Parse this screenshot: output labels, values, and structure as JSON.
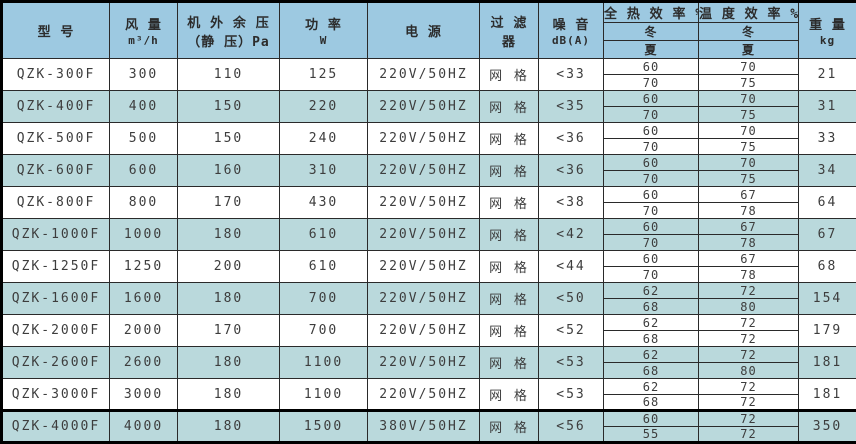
{
  "table": {
    "headers": {
      "model": "型  号",
      "airflow": "风 量",
      "airflow_unit": "m³/h",
      "pressure_line1": "机 外 余 压",
      "pressure_line2": "（静 压）Pa",
      "power": "功 率",
      "power_unit": "W",
      "supply": "电  源",
      "filter_line1": "过 滤",
      "filter_line2": "器",
      "noise": "噪 音",
      "noise_unit": "dB(A)",
      "heat_efficiency": "全 热 效 率 %",
      "temp_efficiency": "温 度 效 率 %",
      "winter": "冬",
      "summer": "夏",
      "weight": "重 量",
      "weight_unit": "kg"
    },
    "rows": [
      {
        "model": "QZK-300F",
        "airflow": "300",
        "pressure": "110",
        "power": "125",
        "supply": "220V/50HZ",
        "filter": "网 格",
        "noise": "<33",
        "heat_winter": "60",
        "heat_summer": "70",
        "temp_winter": "70",
        "temp_summer": "75",
        "weight": "21"
      },
      {
        "model": "QZK-400F",
        "airflow": "400",
        "pressure": "150",
        "power": "220",
        "supply": "220V/50HZ",
        "filter": "网 格",
        "noise": "<35",
        "heat_winter": "60",
        "heat_summer": "70",
        "temp_winter": "70",
        "temp_summer": "75",
        "weight": "31"
      },
      {
        "model": "QZK-500F",
        "airflow": "500",
        "pressure": "150",
        "power": "240",
        "supply": "220V/50HZ",
        "filter": "网 格",
        "noise": "<36",
        "heat_winter": "60",
        "heat_summer": "70",
        "temp_winter": "70",
        "temp_summer": "75",
        "weight": "33"
      },
      {
        "model": "QZK-600F",
        "airflow": "600",
        "pressure": "160",
        "power": "310",
        "supply": "220V/50HZ",
        "filter": "网 格",
        "noise": "<36",
        "heat_winter": "60",
        "heat_summer": "70",
        "temp_winter": "70",
        "temp_summer": "75",
        "weight": "34"
      },
      {
        "model": "QZK-800F",
        "airflow": "800",
        "pressure": "170",
        "power": "430",
        "supply": "220V/50HZ",
        "filter": "网 格",
        "noise": "<38",
        "heat_winter": "60",
        "heat_summer": "70",
        "temp_winter": "67",
        "temp_summer": "78",
        "weight": "64"
      },
      {
        "model": "QZK-1000F",
        "airflow": "1000",
        "pressure": "180",
        "power": "610",
        "supply": "220V/50HZ",
        "filter": "网 格",
        "noise": "<42",
        "heat_winter": "60",
        "heat_summer": "70",
        "temp_winter": "67",
        "temp_summer": "78",
        "weight": "67"
      },
      {
        "model": "QZK-1250F",
        "airflow": "1250",
        "pressure": "200",
        "power": "610",
        "supply": "220V/50HZ",
        "filter": "网 格",
        "noise": "<44",
        "heat_winter": "60",
        "heat_summer": "70",
        "temp_winter": "67",
        "temp_summer": "78",
        "weight": "68"
      },
      {
        "model": "QZK-1600F",
        "airflow": "1600",
        "pressure": "180",
        "power": "700",
        "supply": "220V/50HZ",
        "filter": "网 格",
        "noise": "<50",
        "heat_winter": "62",
        "heat_summer": "68",
        "temp_winter": "72",
        "temp_summer": "80",
        "weight": "154"
      },
      {
        "model": "QZK-2000F",
        "airflow": "2000",
        "pressure": "170",
        "power": "700",
        "supply": "220V/50HZ",
        "filter": "网 格",
        "noise": "<52",
        "heat_winter": "62",
        "heat_summer": "68",
        "temp_winter": "72",
        "temp_summer": "72",
        "weight": "179"
      },
      {
        "model": "QZK-2600F",
        "airflow": "2600",
        "pressure": "180",
        "power": "1100",
        "supply": "220V/50HZ",
        "filter": "网 格",
        "noise": "<53",
        "heat_winter": "62",
        "heat_summer": "68",
        "temp_winter": "72",
        "temp_summer": "80",
        "weight": "181"
      },
      {
        "model": "QZK-3000F",
        "airflow": "3000",
        "pressure": "180",
        "power": "1100",
        "supply": "220V/50HZ",
        "filter": "网 格",
        "noise": "<53",
        "heat_winter": "62",
        "heat_summer": "68",
        "temp_winter": "72",
        "temp_summer": "72",
        "weight": "181"
      },
      {
        "model": "QZK-4000F",
        "airflow": "4000",
        "pressure": "180",
        "power": "1500",
        "supply": "380V/50HZ",
        "filter": "网 格",
        "noise": "<56",
        "heat_winter": "60",
        "heat_summer": "55",
        "temp_winter": "72",
        "temp_summer": "72",
        "weight": "350"
      }
    ]
  },
  "colors": {
    "header_bg": "#9dc9e1",
    "row_alt_bg": "#bad9dc",
    "row_bg": "#ffffff",
    "border": "#2a2a2a",
    "text": "#3d3d3d"
  }
}
